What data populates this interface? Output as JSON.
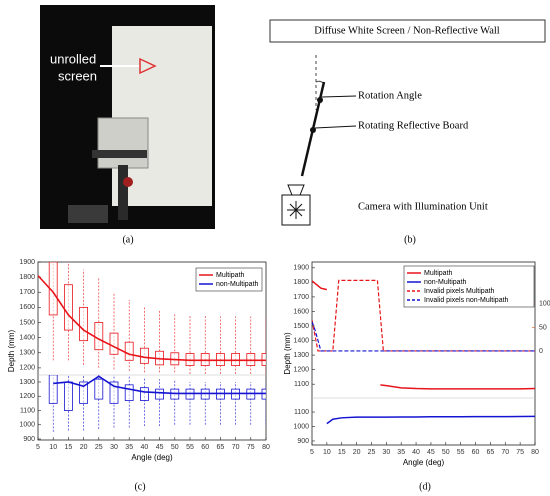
{
  "figure": {
    "photo": {
      "label_line1": "unrolled",
      "label_line2": "screen",
      "caption": "(a)"
    },
    "diagram": {
      "screen": "Diffuse White Screen / Non-Reflective Wall",
      "angle": "Rotation Angle",
      "board": "Rotating Reflective Board",
      "camera": "Camera with Illumination Unit",
      "caption": "(b)"
    }
  },
  "chart_data": [
    {
      "type": "box",
      "caption": "(c)",
      "xlabel": "Angle (deg)",
      "ylabel": "Depth (mm)",
      "x": [
        5,
        10,
        15,
        20,
        25,
        30,
        35,
        40,
        45,
        50,
        55,
        60,
        65,
        70,
        75,
        80
      ],
      "xlim": [
        5,
        80
      ],
      "xticks": [
        5,
        10,
        15,
        20,
        25,
        30,
        35,
        40,
        45,
        50,
        55,
        60,
        65,
        70,
        75,
        80
      ],
      "panels": [
        {
          "ylim": [
            1153,
            1900
          ],
          "yticks": [
            1200,
            1300,
            1400,
            1500,
            1600,
            1700,
            1800,
            1900
          ]
        },
        {
          "ylim": [
            893,
            1349
          ],
          "yticks": [
            900,
            1000,
            1100,
            1200,
            1300
          ]
        }
      ],
      "legend": "upper right",
      "series": [
        {
          "name": "Multipath",
          "color": "#e8141a",
          "panel": 0,
          "values": [
            1810,
            1700,
            1550,
            1450,
            1390,
            1340,
            1290,
            1270,
            1260,
            1255,
            1250,
            1250,
            1250,
            1250,
            1250,
            1250
          ],
          "q1": [
            null,
            1550,
            1450,
            1380,
            1320,
            1290,
            1250,
            1230,
            1220,
            1220,
            1215,
            1215,
            1215,
            1215,
            1215,
            1215
          ],
          "q3": [
            null,
            1900,
            1750,
            1600,
            1500,
            1430,
            1370,
            1330,
            1310,
            1300,
            1295,
            1295,
            1295,
            1295,
            1295,
            1295
          ],
          "low": [
            null,
            1250,
            1250,
            1220,
            1200,
            1190,
            1180,
            1170,
            1170,
            1170,
            1160,
            1160,
            1160,
            1160,
            1160,
            1160
          ],
          "high": [
            null,
            1900,
            1900,
            1850,
            1800,
            1700,
            1650,
            1600,
            1580,
            1560,
            1550,
            1550,
            1540,
            1540,
            1540,
            1540
          ]
        },
        {
          "name": "non-Multipath",
          "color": "#1414d2",
          "panel": 1,
          "values": [
            null,
            1290,
            1300,
            1270,
            1340,
            1270,
            1250,
            1230,
            1225,
            1220,
            1220,
            1220,
            1220,
            1220,
            1220,
            1220
          ],
          "q1": [
            null,
            1150,
            1100,
            1150,
            1180,
            1150,
            1170,
            1170,
            1180,
            1180,
            1180,
            1180,
            1180,
            1180,
            1180,
            1180
          ],
          "q3": [
            null,
            1350,
            1300,
            1300,
            1320,
            1300,
            1280,
            1260,
            1250,
            1250,
            1250,
            1250,
            1250,
            1250,
            1250,
            1250
          ],
          "low": [
            null,
            950,
            960,
            960,
            970,
            980,
            980,
            990,
            990,
            1000,
            1000,
            1000,
            1000,
            1000,
            1000,
            1000
          ],
          "high": [
            null,
            1350,
            1350,
            1350,
            1350,
            1350,
            1340,
            1330,
            1320,
            1310,
            1300,
            1300,
            1300,
            1300,
            1300,
            1300
          ]
        }
      ]
    },
    {
      "type": "line",
      "caption": "(d)",
      "xlabel": "Angle (deg)",
      "ylabel": "Depth (mm)",
      "xlim": [
        5,
        80
      ],
      "xticks": [
        5,
        10,
        15,
        20,
        25,
        30,
        35,
        40,
        45,
        50,
        55,
        60,
        65,
        70,
        75,
        80
      ],
      "axis_color": "#0072bd",
      "y2_color": "#d95319",
      "panels": [
        {
          "ylim": [
            1005,
            1940
          ],
          "yticks": [
            1100,
            1200,
            1300,
            1400,
            1500,
            1600,
            1700,
            1800,
            1900
          ]
        },
        {
          "ylim": [
            872,
            1197
          ],
          "yticks": [
            900,
            1000,
            1100
          ]
        }
      ],
      "y2lim": [
        -100,
        189
      ],
      "y2ticks": [
        0,
        50,
        100
      ],
      "legend": "upper right",
      "series": [
        {
          "name": "Multipath",
          "color": "#e8141a",
          "panel": 0,
          "x": [
            5,
            8,
            10,
            20,
            28,
            30,
            35,
            40,
            45,
            50,
            55,
            60,
            65,
            70,
            75,
            80
          ],
          "values": [
            1810,
            1760,
            1750,
            null,
            1095,
            1090,
            1075,
            1070,
            1068,
            1068,
            1068,
            1068,
            1068,
            1068,
            1068,
            1070
          ]
        },
        {
          "name": "non-Multipath",
          "color": "#1414d2",
          "panel": 1,
          "x": [
            10,
            12,
            15,
            20,
            25,
            30,
            35,
            40,
            45,
            50,
            55,
            60,
            65,
            70,
            75,
            80
          ],
          "values": [
            1020,
            1050,
            1060,
            1065,
            1065,
            1065,
            1066,
            1066,
            1067,
            1067,
            1067,
            1068,
            1068,
            1068,
            1069,
            1070
          ]
        },
        {
          "name": "Invalid pixels Multipath",
          "color": "#e8141a",
          "axis": "y2",
          "panel": 0,
          "dash": true,
          "x": [
            5,
            7,
            12,
            14,
            27,
            29,
            80
          ],
          "values": [
            66,
            0,
            0,
            150,
            150,
            0,
            0
          ]
        },
        {
          "name": "Invalid pixels non-Multipath",
          "color": "#1414d2",
          "axis": "y2",
          "panel": 0,
          "dash": true,
          "x": [
            5,
            6,
            8,
            80
          ],
          "values": [
            62,
            45,
            0,
            0
          ]
        }
      ]
    }
  ]
}
